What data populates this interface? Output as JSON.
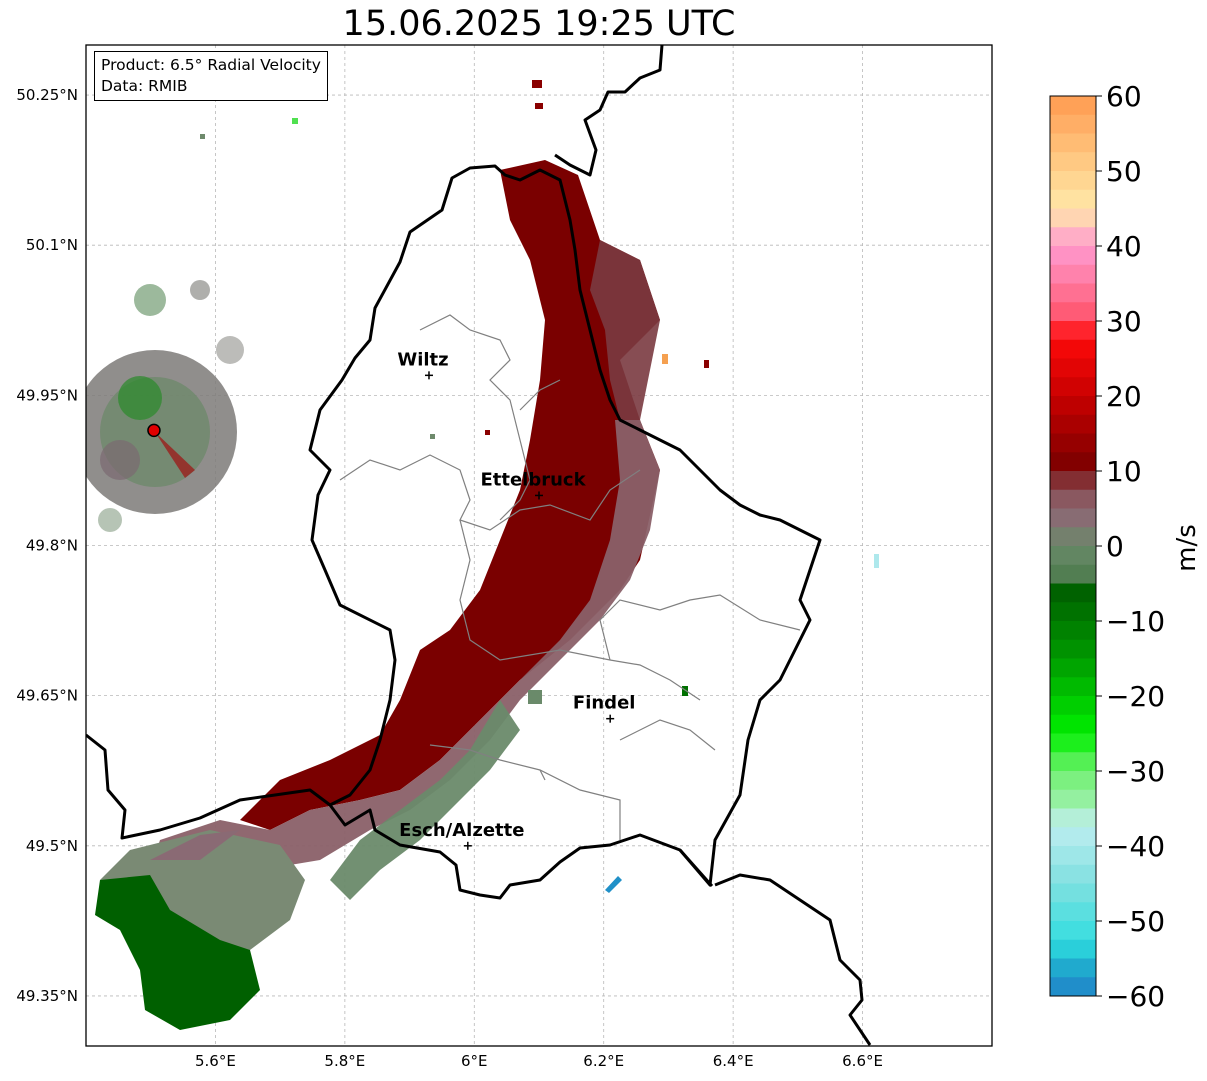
{
  "title": "15.06.2025 19:25 UTC",
  "info": {
    "product": "Product: 6.5° Radial Velocity",
    "source": "Data: RMIB"
  },
  "axes": {
    "x_ticks": [
      "5.6°E",
      "5.8°E",
      "6°E",
      "6.2°E",
      "6.4°E",
      "6.6°E"
    ],
    "y_ticks": [
      "50.25°N",
      "50.1°N",
      "49.95°N",
      "49.8°N",
      "49.65°N",
      "49.5°N",
      "49.35°N"
    ],
    "lon_range": [
      5.4,
      6.8
    ],
    "lat_range": [
      49.3,
      50.3
    ]
  },
  "cities": [
    {
      "name": "Wiltz",
      "lon": 5.93,
      "lat": 49.97
    },
    {
      "name": "Ettelbruck",
      "lon": 6.1,
      "lat": 49.85
    },
    {
      "name": "Findel",
      "lon": 6.21,
      "lat": 49.627
    },
    {
      "name": "Esch/Alzette",
      "lon": 5.99,
      "lat": 49.5
    }
  ],
  "radar_site": {
    "lon": 5.505,
    "lat": 49.915
  },
  "colorbar": {
    "label": "m/s",
    "ticks": [
      "60",
      "50",
      "40",
      "30",
      "20",
      "10",
      "0",
      "−10",
      "−20",
      "−30",
      "−40",
      "−50",
      "−60"
    ],
    "range": [
      -60,
      60
    ],
    "stops": [
      {
        "v": 60,
        "color": "#ff9a50"
      },
      {
        "v": 50,
        "color": "#ffd08a"
      },
      {
        "v": 45,
        "color": "#ffe8a8"
      },
      {
        "v": 40,
        "color": "#ff9ad0"
      },
      {
        "v": 35,
        "color": "#ff7aa0"
      },
      {
        "v": 30,
        "color": "#ff5068"
      },
      {
        "v": 28,
        "color": "#ff0a0a"
      },
      {
        "v": 20,
        "color": "#c80000"
      },
      {
        "v": 10,
        "color": "#780000"
      },
      {
        "v": 8,
        "color": "#8a4a50"
      },
      {
        "v": 4,
        "color": "#8a6a74"
      },
      {
        "v": 0,
        "color": "#6a8a6a"
      },
      {
        "v": -5,
        "color": "#4a7a4a"
      },
      {
        "v": -6,
        "color": "#006000"
      },
      {
        "v": -15,
        "color": "#009a00"
      },
      {
        "v": -25,
        "color": "#00ee00"
      },
      {
        "v": -30,
        "color": "#70f070"
      },
      {
        "v": -35,
        "color": "#a0f0b0"
      },
      {
        "v": -37,
        "color": "#c0eef0"
      },
      {
        "v": -45,
        "color": "#80e0e0"
      },
      {
        "v": -53,
        "color": "#30dde0"
      },
      {
        "v": -55,
        "color": "#20b8d0"
      },
      {
        "v": -60,
        "color": "#2080c8"
      }
    ]
  }
}
